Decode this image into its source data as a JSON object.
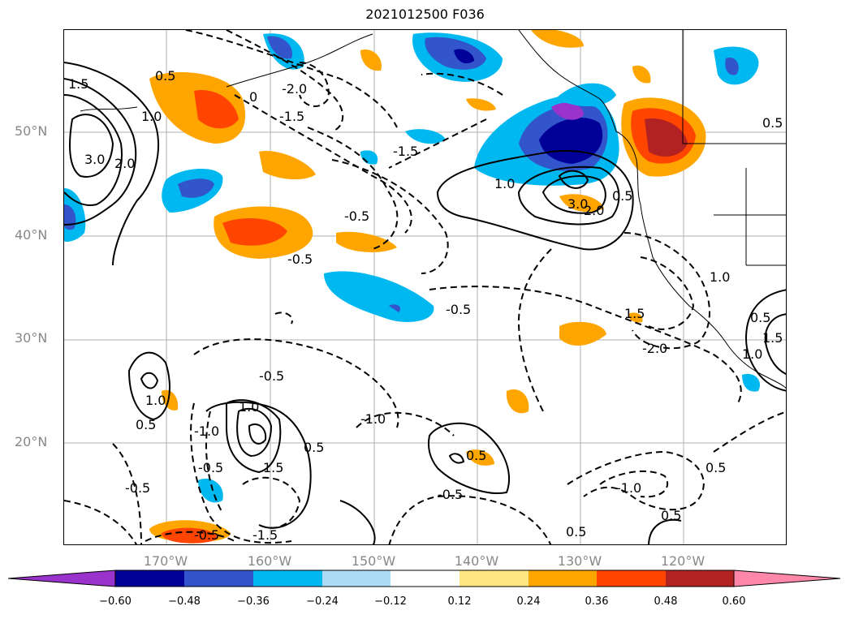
{
  "title": "2021012500 F036",
  "lat_labels": [
    "50°N",
    "40°N",
    "30°N",
    "20°N"
  ],
  "lon_labels": [
    "170°W",
    "160°W",
    "150°W",
    "140°W",
    "130°W",
    "120°W"
  ],
  "colorbar": {
    "ticks": [
      "−0.60",
      "−0.48",
      "−0.36",
      "−0.24",
      "−0.12",
      "0.12",
      "0.24",
      "0.36",
      "0.48",
      "0.60"
    ],
    "colors": [
      "#9933cc",
      "#000099",
      "#3355cc",
      "#00b8f0",
      "#aadcf6",
      "#ffffff",
      "#ffe680",
      "#ffa500",
      "#ff4500",
      "#b22222",
      "#ff88aa"
    ]
  },
  "contour_labels": {
    "l_1_5_a": "1.5",
    "l_0_5_a": "0.5",
    "l_1_0_a": "1.0",
    "l_3_0_a": "3.0",
    "l_2_0_a": "2.0",
    "l_n2_0_a": "-2.0",
    "l_n1_5_a": "-1.5",
    "l_n0_5_a": "-0.5",
    "l_0_a": "0",
    "l_n1_5_b": "-1.5",
    "l_n0_5_b": "-0.5",
    "l_1_0_b": "1.0",
    "l_3_0_b": "3.0",
    "l_2_0_b": "2.0",
    "l_0_5_b": "0.5",
    "l_n0_5_c": "-0.5",
    "l_0_5_c": "0.5",
    "l_1_0_c": "1.0",
    "l_n0_5_d": "-0.5",
    "l_n1_0_a": "-1.0",
    "l_1_5_b": "1.5",
    "l_n2_0_b": "-2.0",
    "l_0_5_d": "0.5",
    "l_1_0_d": "1.0",
    "l_n1_0_b": "-1.0",
    "l_0_5_e": "0.5",
    "l_n0_5_e": "-0.5",
    "l_n0_5_f": "-0.5",
    "l_n1_0_c": "-1.0",
    "l_0_5_f": "0.5",
    "l_0_5_g": "0.5",
    "l_n1_5_c": "-1.5",
    "l_0_5_h": "0.5",
    "l_n0_5_g": "-0.5",
    "l_n0_5_h": "-0.5",
    "l_0_5_i": "0.5",
    "l_1_0_e": "1.0",
    "l_1_5_c": "1.5",
    "l_0_5_j": "0.5",
    "l_1_0_f": "1.0",
    "l_1_5_d": "1.5"
  }
}
